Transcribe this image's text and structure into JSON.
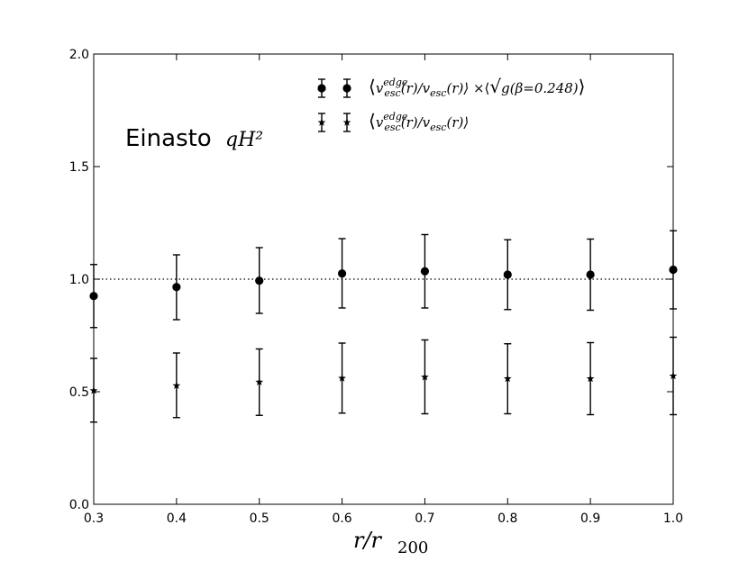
{
  "chart_data": {
    "type": "scatter",
    "xlabel": "r/r",
    "xlabel_sub": "200",
    "ylabel": "",
    "xlim": [
      0.3,
      1.0
    ],
    "ylim": [
      0.0,
      2.0
    ],
    "xticks": [
      0.3,
      0.4,
      0.5,
      0.6,
      0.7,
      0.8,
      0.9,
      1.0
    ],
    "yticks": [
      0.0,
      0.5,
      1.0,
      1.5,
      2.0
    ],
    "xtick_labels": [
      "0.3",
      "0.4",
      "0.5",
      "0.6",
      "0.7",
      "0.8",
      "0.9",
      "1.0"
    ],
    "ytick_labels": [
      "0.0",
      "0.5",
      "1.0",
      "1.5",
      "2.0"
    ],
    "reference_line": {
      "y": 1.0,
      "style": "dotted"
    },
    "legend_placement": "top-right",
    "annotation": {
      "text": "Einasto",
      "math": "qH²"
    },
    "series": [
      {
        "name": "⟨v_esc^edge(r)/v_esc(r)⟩ ×⟨√g(β=0.248)⟩",
        "marker": "circle",
        "x": [
          0.3,
          0.4,
          0.5,
          0.6,
          0.7,
          0.8,
          0.9,
          1.0
        ],
        "y": [
          0.925,
          0.965,
          0.993,
          1.025,
          1.035,
          1.02,
          1.02,
          1.042
        ],
        "yerr_low": [
          0.785,
          0.82,
          0.848,
          0.872,
          0.872,
          0.865,
          0.862,
          0.868
        ],
        "yerr_high": [
          1.065,
          1.108,
          1.14,
          1.18,
          1.198,
          1.175,
          1.178,
          1.215
        ]
      },
      {
        "name": "⟨v_esc^edge(r)/v_esc(r)⟩",
        "marker": "star",
        "x": [
          0.3,
          0.4,
          0.5,
          0.6,
          0.7,
          0.8,
          0.9,
          1.0
        ],
        "y": [
          0.505,
          0.527,
          0.543,
          0.56,
          0.565,
          0.558,
          0.558,
          0.57
        ],
        "yerr_low": [
          0.365,
          0.385,
          0.395,
          0.405,
          0.402,
          0.402,
          0.398,
          0.398
        ],
        "yerr_high": [
          0.648,
          0.672,
          0.69,
          0.716,
          0.73,
          0.713,
          0.718,
          0.742
        ]
      }
    ],
    "legend": [
      {
        "lead": "⟨",
        "v": "v",
        "sup": "edge",
        "sub1": "esc",
        "mid": "(r)/",
        "v2": "v",
        "sub2": "esc",
        "tail": "(r)⟩",
        "extra_pre": " ×⟨",
        "sqrt_body": "g(β=0.248)",
        "extra_post": "⟩"
      },
      {
        "lead": "⟨",
        "v": "v",
        "sup": "edge",
        "sub1": "esc",
        "mid": "(r)/",
        "v2": "v",
        "sub2": "esc",
        "tail": "(r)⟩",
        "extra_pre": "",
        "sqrt_body": "",
        "extra_post": ""
      }
    ]
  }
}
